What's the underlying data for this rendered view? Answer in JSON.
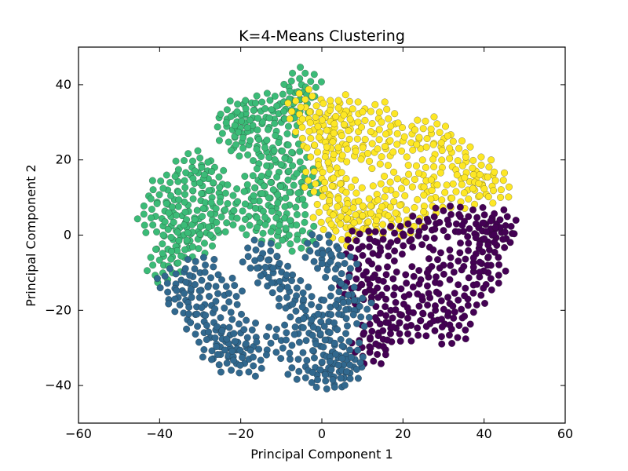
{
  "chart_data": {
    "type": "scatter",
    "title": "K=4-Means Clustering",
    "xlabel": "Principal Component 1",
    "ylabel": "Principal Component 2",
    "xlim": [
      -60,
      60
    ],
    "ylim": [
      -50,
      50
    ],
    "xticks": [
      -60,
      -40,
      -20,
      0,
      20,
      40,
      60
    ],
    "yticks": [
      -40,
      -20,
      0,
      20,
      40
    ],
    "xtick_labels": [
      "−60",
      "−40",
      "−20",
      "0",
      "20",
      "40",
      "60"
    ],
    "ytick_labels": [
      "−40",
      "−20",
      "0",
      "20",
      "40"
    ],
    "grid": false,
    "legend": false,
    "series": [
      {
        "color": "#3BBB77",
        "values": [
          {
            "x": -33,
            "y": 8
          },
          {
            "x": -38,
            "y": 12
          },
          {
            "x": -28,
            "y": 15
          },
          {
            "x": -41,
            "y": 5
          },
          {
            "x": -35,
            "y": 2
          },
          {
            "x": -30,
            "y": 0
          },
          {
            "x": -25,
            "y": 10
          },
          {
            "x": -36,
            "y": -3
          },
          {
            "x": -32,
            "y": 18
          },
          {
            "x": -27,
            "y": 4
          },
          {
            "x": -39,
            "y": -8
          },
          {
            "x": -22,
            "y": 28
          },
          {
            "x": -15,
            "y": 33
          },
          {
            "x": -10,
            "y": 30
          },
          {
            "x": -18,
            "y": 24
          },
          {
            "x": -12,
            "y": 22
          },
          {
            "x": -7,
            "y": 35
          },
          {
            "x": -20,
            "y": 32
          },
          {
            "x": -8,
            "y": 20
          },
          {
            "x": -14,
            "y": 11
          },
          {
            "x": -8,
            "y": 8
          },
          {
            "x": -18,
            "y": 5
          },
          {
            "x": -12,
            "y": 2
          },
          {
            "x": -6,
            "y": 0
          },
          {
            "x": -5,
            "y": 14
          },
          {
            "x": -15,
            "y": 14
          },
          {
            "x": -5,
            "y": 40
          }
        ]
      },
      {
        "color": "#FDE725",
        "values": [
          {
            "x": -4,
            "y": 34
          },
          {
            "x": -2,
            "y": 28
          },
          {
            "x": 3,
            "y": 31
          },
          {
            "x": 6,
            "y": 33
          },
          {
            "x": 1,
            "y": 22
          },
          {
            "x": 6,
            "y": 24
          },
          {
            "x": 0,
            "y": 15
          },
          {
            "x": 5,
            "y": 12
          },
          {
            "x": 2,
            "y": 6
          },
          {
            "x": 6,
            "y": 2
          },
          {
            "x": 10,
            "y": 5
          },
          {
            "x": 13,
            "y": 22
          },
          {
            "x": 20,
            "y": 25
          },
          {
            "x": 27,
            "y": 27
          },
          {
            "x": 32,
            "y": 22
          },
          {
            "x": 38,
            "y": 17
          },
          {
            "x": 25,
            "y": 16
          },
          {
            "x": 17,
            "y": 12
          },
          {
            "x": 28,
            "y": 10
          },
          {
            "x": 36,
            "y": 12
          },
          {
            "x": 14,
            "y": 5
          },
          {
            "x": 21,
            "y": 4
          },
          {
            "x": 42,
            "y": 13
          },
          {
            "x": 14,
            "y": 31
          }
        ]
      },
      {
        "color": "#440154",
        "values": [
          {
            "x": 10,
            "y": -3
          },
          {
            "x": 17,
            "y": -2
          },
          {
            "x": 24,
            "y": 1
          },
          {
            "x": 31,
            "y": 4
          },
          {
            "x": 38,
            "y": 3
          },
          {
            "x": 42,
            "y": 0
          },
          {
            "x": 14,
            "y": -12
          },
          {
            "x": 17,
            "y": -20
          },
          {
            "x": 14,
            "y": -26
          },
          {
            "x": 9,
            "y": -14
          },
          {
            "x": 24,
            "y": -13
          },
          {
            "x": 28,
            "y": -20
          },
          {
            "x": 32,
            "y": -25
          },
          {
            "x": 36,
            "y": -17
          },
          {
            "x": 41,
            "y": -10
          },
          {
            "x": 44,
            "y": 2
          },
          {
            "x": 22,
            "y": -24
          },
          {
            "x": 30,
            "y": -8
          },
          {
            "x": 38,
            "y": -5
          },
          {
            "x": 12,
            "y": -30
          }
        ]
      },
      {
        "color": "#31688E",
        "values": [
          {
            "x": -36,
            "y": -13
          },
          {
            "x": -33,
            "y": -18
          },
          {
            "x": -29,
            "y": -23
          },
          {
            "x": -26,
            "y": -29
          },
          {
            "x": -23,
            "y": -32
          },
          {
            "x": -30,
            "y": -10
          },
          {
            "x": -24,
            "y": -16
          },
          {
            "x": -20,
            "y": -26
          },
          {
            "x": -15,
            "y": -6
          },
          {
            "x": -12,
            "y": -10
          },
          {
            "x": -8,
            "y": -15
          },
          {
            "x": -4,
            "y": -20
          },
          {
            "x": -1,
            "y": -25
          },
          {
            "x": 2,
            "y": -28
          },
          {
            "x": 5,
            "y": -17
          },
          {
            "x": 0,
            "y": -4
          },
          {
            "x": 4,
            "y": -8
          },
          {
            "x": 8,
            "y": -20
          },
          {
            "x": 6,
            "y": -32
          },
          {
            "x": -4,
            "y": -35
          },
          {
            "x": 2,
            "y": -37
          },
          {
            "x": 5,
            "y": -36
          },
          {
            "x": -10,
            "y": -28
          },
          {
            "x": -18,
            "y": -33
          }
        ]
      }
    ]
  }
}
